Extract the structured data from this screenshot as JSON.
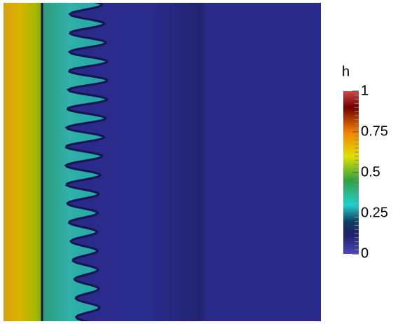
{
  "colorbar": {
    "title": "h",
    "range": [
      0,
      1
    ],
    "ticks": [
      0,
      0.25,
      0.5,
      0.75,
      1
    ]
  }
}
